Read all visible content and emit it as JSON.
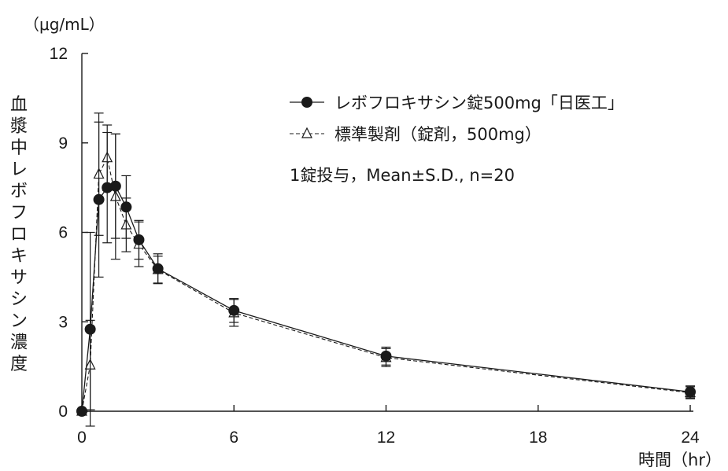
{
  "chart_data": {
    "type": "line",
    "y_unit": "（μg/mL）",
    "ylabel": "血漿中レボフロキサシン濃度",
    "xlabel": "時間（hr）",
    "xlim": [
      0,
      24
    ],
    "ylim": [
      0,
      12
    ],
    "x_ticks": [
      0,
      6,
      12,
      18,
      24
    ],
    "y_ticks": [
      0,
      3,
      6,
      9,
      12
    ],
    "x_tick_labels": [
      "0",
      "6",
      "12",
      "18",
      "24"
    ],
    "y_tick_labels": [
      "0",
      "3",
      "6",
      "9",
      "12"
    ],
    "legend_placement": "top-right",
    "annotation": "1錠投与，Mean±S.D., n=20",
    "grid": false,
    "series": [
      {
        "name": "レボフロキサシン錠500mg「日医工」",
        "marker": "filled-circle",
        "line": "solid",
        "x": [
          0,
          0.33,
          0.67,
          1,
          1.33,
          1.75,
          2.25,
          3,
          6,
          12,
          24
        ],
        "y": [
          0,
          2.75,
          7.1,
          7.5,
          7.55,
          6.85,
          5.75,
          4.78,
          3.38,
          1.85,
          0.65
        ],
        "sd": [
          0,
          3.25,
          2.6,
          1.85,
          1.75,
          1.05,
          0.65,
          0.5,
          0.4,
          0.3,
          0.2
        ]
      },
      {
        "name": "標準製剤（錠剤，500mg）",
        "marker": "open-triangle",
        "line": "dashed",
        "x": [
          0,
          0.33,
          0.67,
          1,
          1.33,
          1.75,
          2.25,
          3,
          6,
          12,
          24
        ],
        "y": [
          0,
          1.55,
          7.95,
          8.5,
          7.2,
          6.25,
          5.6,
          4.75,
          3.3,
          1.8,
          0.62
        ],
        "sd": [
          0,
          1.5,
          2.05,
          1.1,
          2.1,
          0.9,
          0.75,
          0.45,
          0.45,
          0.3,
          0.2
        ]
      }
    ]
  }
}
